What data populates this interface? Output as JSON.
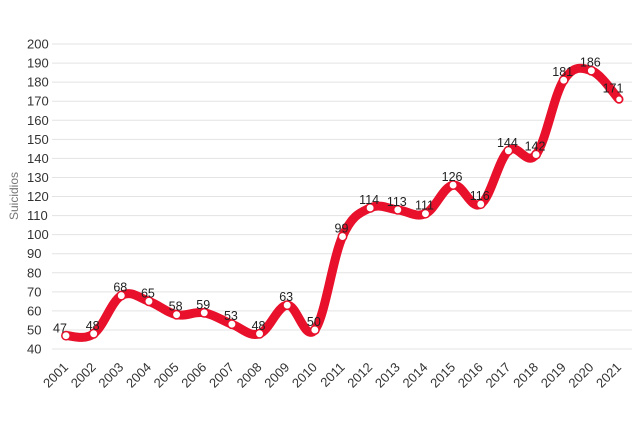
{
  "chart_data": {
    "type": "line",
    "title": "",
    "xlabel": "",
    "ylabel": "Suicidios",
    "ylim": [
      40,
      200
    ],
    "ytick_step": 10,
    "grid": true,
    "color": "#e8102b",
    "categories": [
      "2001",
      "2002",
      "2003",
      "2004",
      "2005",
      "2006",
      "2007",
      "2008",
      "2009",
      "2010",
      "2011",
      "2012",
      "2013",
      "2014",
      "2015",
      "2016",
      "2017",
      "2018",
      "2019",
      "2020",
      "2021"
    ],
    "series": [
      {
        "name": "Suicidios",
        "values": [
          47,
          48,
          68,
          65,
          58,
          59,
          53,
          48,
          63,
          50,
          99,
          114,
          113,
          111,
          126,
          116,
          144,
          142,
          181,
          186,
          171
        ]
      }
    ],
    "last_point_marker": "dot"
  }
}
